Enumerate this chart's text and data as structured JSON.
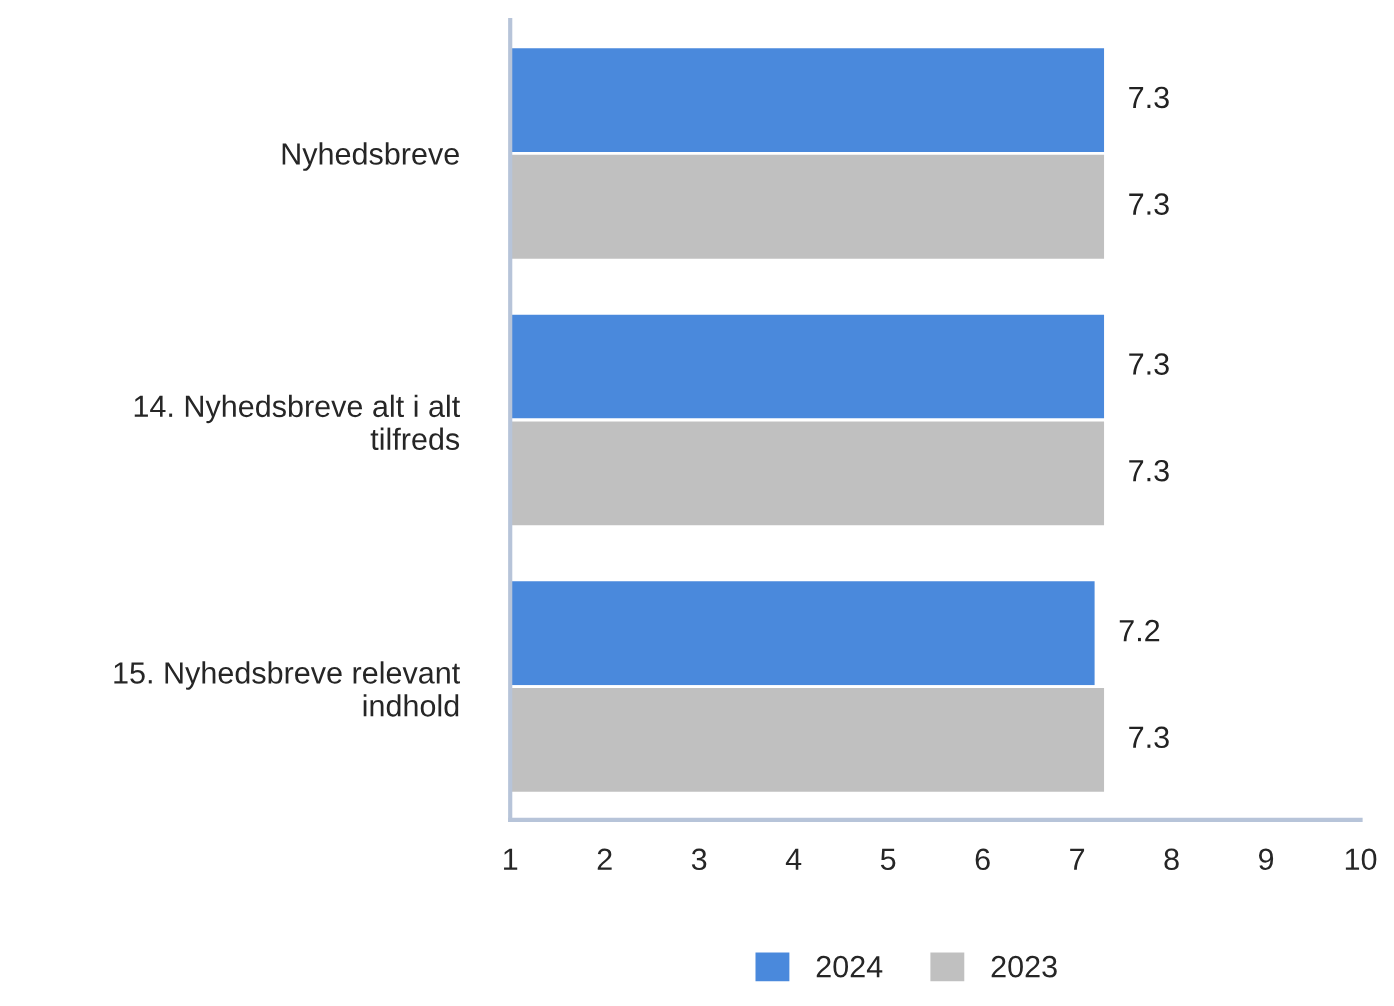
{
  "chart_data": {
    "type": "bar",
    "orientation": "horizontal",
    "categories": [
      "Nyhedsbreve",
      "14. Nyhedsbreve alt i alt\ntilfreds",
      "15. Nyhedsbreve relevant\nindhold"
    ],
    "series": [
      {
        "name": "2024",
        "color": "#4a89dc",
        "values": [
          7.3,
          7.3,
          7.2
        ]
      },
      {
        "name": "2023",
        "color": "#c0c0c0",
        "values": [
          7.3,
          7.3,
          7.3
        ]
      }
    ],
    "xlim": [
      1,
      10
    ],
    "xticks": [
      1,
      2,
      3,
      4,
      5,
      6,
      7,
      8,
      9,
      10
    ],
    "data_labels": true,
    "grid": false,
    "legend": "bottom"
  }
}
